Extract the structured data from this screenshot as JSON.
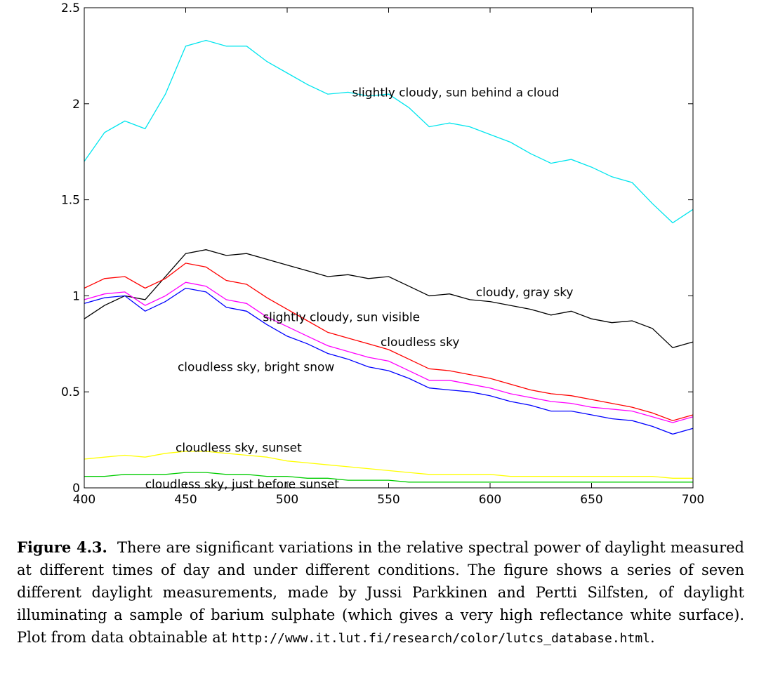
{
  "chart_data": {
    "type": "line",
    "title": "",
    "xlabel": "",
    "ylabel": "",
    "xlim": [
      400,
      700
    ],
    "ylim": [
      0,
      2.5
    ],
    "xticks": [
      400,
      450,
      500,
      550,
      600,
      650,
      700
    ],
    "xtick_labels": [
      "400",
      "450",
      "500",
      "550",
      "600",
      "650",
      "700"
    ],
    "yticks": [
      0,
      0.5,
      1,
      1.5,
      2,
      2.5
    ],
    "ytick_labels": [
      "0",
      "0.5",
      "1",
      "1.5",
      "2",
      "2.5"
    ],
    "grid": false,
    "legend": "none",
    "x": [
      400,
      410,
      420,
      430,
      440,
      450,
      460,
      470,
      480,
      490,
      500,
      510,
      520,
      530,
      540,
      550,
      560,
      570,
      580,
      590,
      600,
      610,
      620,
      630,
      640,
      650,
      660,
      670,
      680,
      690,
      700
    ],
    "series": [
      {
        "label": "slightly cloudy, sun behind a cloud",
        "color": "#00e5ee",
        "values": [
          1.7,
          1.85,
          1.91,
          1.87,
          2.05,
          2.3,
          2.33,
          2.3,
          2.3,
          2.22,
          2.16,
          2.1,
          2.05,
          2.06,
          2.04,
          2.05,
          1.98,
          1.88,
          1.9,
          1.88,
          1.84,
          1.8,
          1.74,
          1.69,
          1.71,
          1.67,
          1.62,
          1.59,
          1.48,
          1.38,
          1.45
        ]
      },
      {
        "label": "cloudy, gray sky",
        "color": "#000000",
        "values": [
          0.88,
          0.95,
          1.0,
          0.98,
          1.1,
          1.22,
          1.24,
          1.21,
          1.22,
          1.19,
          1.16,
          1.13,
          1.1,
          1.11,
          1.09,
          1.1,
          1.05,
          1.0,
          1.01,
          0.98,
          0.97,
          0.95,
          0.93,
          0.9,
          0.92,
          0.88,
          0.86,
          0.87,
          0.83,
          0.73,
          0.76
        ]
      },
      {
        "label": "slightly cloudy, sun visible",
        "color": "#ff0000",
        "values": [
          1.04,
          1.09,
          1.1,
          1.04,
          1.09,
          1.17,
          1.15,
          1.08,
          1.06,
          0.99,
          0.93,
          0.87,
          0.81,
          0.78,
          0.75,
          0.72,
          0.67,
          0.62,
          0.61,
          0.59,
          0.57,
          0.54,
          0.51,
          0.49,
          0.48,
          0.46,
          0.44,
          0.42,
          0.39,
          0.35,
          0.38
        ]
      },
      {
        "label": "cloudless sky",
        "color": "#ff00ff",
        "values": [
          0.98,
          1.01,
          1.02,
          0.95,
          1.0,
          1.07,
          1.05,
          0.98,
          0.96,
          0.89,
          0.84,
          0.79,
          0.74,
          0.71,
          0.68,
          0.66,
          0.61,
          0.56,
          0.56,
          0.54,
          0.52,
          0.49,
          0.47,
          0.45,
          0.44,
          0.42,
          0.41,
          0.4,
          0.37,
          0.34,
          0.37
        ]
      },
      {
        "label": "cloudless sky, bright snow",
        "color": "#0000ff",
        "values": [
          0.96,
          0.99,
          1.0,
          0.92,
          0.97,
          1.04,
          1.02,
          0.94,
          0.92,
          0.85,
          0.79,
          0.75,
          0.7,
          0.67,
          0.63,
          0.61,
          0.57,
          0.52,
          0.51,
          0.5,
          0.48,
          0.45,
          0.43,
          0.4,
          0.4,
          0.38,
          0.36,
          0.35,
          0.32,
          0.28,
          0.31
        ]
      },
      {
        "label": "cloudless sky, sunset",
        "color": "#ffff00",
        "values": [
          0.15,
          0.16,
          0.17,
          0.16,
          0.18,
          0.19,
          0.19,
          0.18,
          0.17,
          0.16,
          0.14,
          0.13,
          0.12,
          0.11,
          0.1,
          0.09,
          0.08,
          0.07,
          0.07,
          0.07,
          0.07,
          0.06,
          0.06,
          0.06,
          0.06,
          0.06,
          0.06,
          0.06,
          0.06,
          0.05,
          0.05
        ]
      },
      {
        "label": "cloudless sky, just before sunset",
        "color": "#00cc00",
        "values": [
          0.06,
          0.06,
          0.07,
          0.07,
          0.07,
          0.08,
          0.08,
          0.07,
          0.07,
          0.06,
          0.06,
          0.05,
          0.05,
          0.04,
          0.04,
          0.04,
          0.03,
          0.03,
          0.03,
          0.03,
          0.03,
          0.03,
          0.03,
          0.03,
          0.03,
          0.03,
          0.03,
          0.03,
          0.03,
          0.03,
          0.03
        ]
      }
    ],
    "annotations": [
      {
        "text": "slightly cloudy, sun behind a cloud",
        "x": 532,
        "y": 2.06
      },
      {
        "text": "cloudy, gray sky",
        "x": 593,
        "y": 1.02
      },
      {
        "text": "slightly cloudy, sun visible",
        "x": 488,
        "y": 0.89
      },
      {
        "text": "cloudless sky",
        "x": 546,
        "y": 0.76
      },
      {
        "text": "cloudless sky, bright snow",
        "x": 446,
        "y": 0.63
      },
      {
        "text": "cloudless sky, sunset",
        "x": 445,
        "y": 0.21
      },
      {
        "text": "cloudless sky, just before sunset",
        "x": 430,
        "y": 0.02
      }
    ]
  },
  "caption": {
    "label": "Figure 4.3.",
    "text": "There are significant variations in the relative spectral power of daylight measured at different times of day and under different conditions. The figure shows a series of seven different daylight measurements, made by Jussi Parkkinen and Pertti Silfsten, of daylight illuminating a sample of barium sulphate (which gives a very high reflectance white surface). Plot from data obtainable at",
    "url": "http://www.it.lut.fi/research/color/lutcs_database.html",
    "end": "."
  }
}
